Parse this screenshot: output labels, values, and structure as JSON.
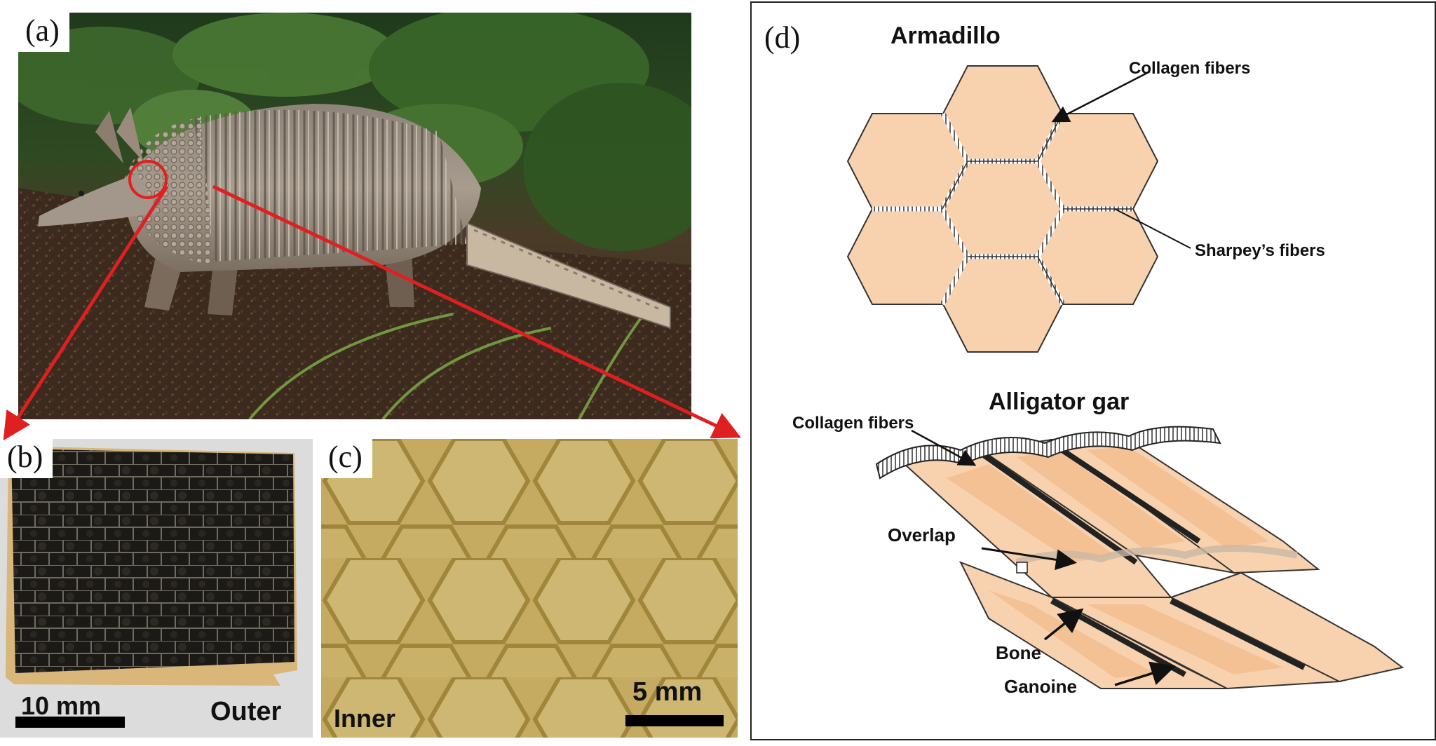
{
  "panels": {
    "a": {
      "label": "(a)"
    },
    "b": {
      "label": "(b)",
      "scale_label": "10 mm",
      "side_label": "Outer"
    },
    "c": {
      "label": "(c)",
      "scale_label": "5 mm",
      "side_label": "Inner"
    },
    "d": {
      "label": "(d)",
      "armadillo": {
        "title": "Armadillo",
        "collagen_label": "Collagen fibers",
        "sharpey_label": "Sharpey’s  fibers"
      },
      "gar": {
        "title": "Alligator gar",
        "collagen_label": "Collagen fibers",
        "overlap_label": "Overlap",
        "bone_label": "Bone",
        "ganoine_label": "Ganoine"
      }
    }
  },
  "colors": {
    "hexagon_fill": "#f8d2ae",
    "tile_shade": "#f2b98a",
    "callout_red": "#e02020",
    "yellow_scale": "#d6bf72"
  }
}
